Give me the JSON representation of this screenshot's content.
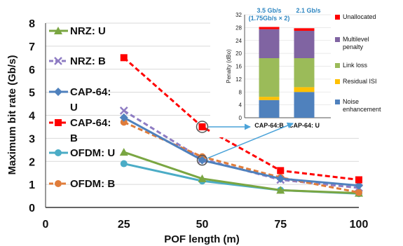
{
  "chart_data": [
    {
      "type": "line",
      "xlabel": "POF length (m)",
      "ylabel": "Maximum bit rate (Gb/s)",
      "xlim": [
        0,
        100
      ],
      "ylim": [
        0,
        8
      ],
      "x_ticks": [
        "0",
        "25",
        "50",
        "75",
        "100"
      ],
      "y_ticks": [
        "0",
        "1",
        "2",
        "3",
        "4",
        "5",
        "6",
        "7",
        "8"
      ],
      "x": [
        25,
        50,
        75,
        100
      ],
      "legend_placement": "left",
      "series": [
        {
          "name": "NRZ: U",
          "color": "#7aa642",
          "dash": "solid",
          "marker": "triangle",
          "values": [
            2.4,
            1.25,
            0.75,
            0.62
          ]
        },
        {
          "name": "NRZ: B",
          "color": "#8e7cc3",
          "dash": "dash",
          "marker": "x",
          "values": [
            4.2,
            2.1,
            1.2,
            0.85
          ]
        },
        {
          "name": "CAP-64: U",
          "color": "#4f81bd",
          "dash": "solid",
          "marker": "diamond",
          "values": [
            3.9,
            2.05,
            1.25,
            0.95
          ]
        },
        {
          "name": "CAP-64: B",
          "color": "#ff0000",
          "dash": "dash",
          "marker": "square",
          "values": [
            6.5,
            3.5,
            1.6,
            1.2
          ]
        },
        {
          "name": "OFDM: U",
          "color": "#4bacc6",
          "dash": "solid",
          "marker": "circle",
          "values": [
            1.9,
            1.15,
            0.75,
            0.6
          ]
        },
        {
          "name": "OFDM: B",
          "color": "#e07c3a",
          "dash": "dash",
          "marker": "circle",
          "values": [
            3.7,
            2.2,
            1.3,
            0.65
          ]
        }
      ]
    },
    {
      "type": "bar",
      "stacked": true,
      "ylabel": "Penalty (dBo)",
      "ylim": [
        0,
        32
      ],
      "y_ticks": [
        "0",
        "4",
        "8",
        "12",
        "16",
        "20",
        "24",
        "28",
        "32"
      ],
      "categories": [
        "CAP-64:B",
        "CAP-64: U"
      ],
      "annotations": [
        "3.5 Gb/s (1.75Gb/s × 2)",
        "2.1 Gb/s"
      ],
      "series": [
        {
          "name": "Noise enhancement",
          "color": "#4f81bd",
          "values": [
            5.5,
            8.0
          ]
        },
        {
          "name": "Residual ISI",
          "color": "#ffc000",
          "values": [
            1.0,
            1.5
          ]
        },
        {
          "name": "Link loss",
          "color": "#9bbb59",
          "values": [
            12.0,
            9.0
          ]
        },
        {
          "name": "Multilevel penalty",
          "color": "#8064a2",
          "values": [
            9.0,
            8.5
          ]
        },
        {
          "name": "Unallocated",
          "color": "#ff0000",
          "values": [
            0.7,
            0.8
          ]
        }
      ]
    }
  ]
}
